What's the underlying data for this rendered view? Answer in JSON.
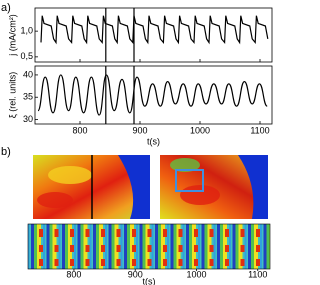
{
  "panel_labels": [
    "a)",
    "b)"
  ],
  "chart_data": [
    {
      "type": "line",
      "ylabel": "j (mA/cm²)",
      "color": "#000000",
      "xlim": [
        725,
        1120
      ],
      "ylim": [
        0.4,
        1.45
      ],
      "yticks": [
        {
          "value": 0.5,
          "label": "0,5"
        },
        {
          "value": 1.0,
          "label": "1,0"
        }
      ],
      "vlines": [
        843,
        890
      ],
      "x": [
        735,
        737,
        740,
        752,
        756,
        760,
        762,
        765,
        777,
        781,
        786,
        788,
        791,
        803,
        807,
        811,
        813,
        816,
        828,
        832,
        837,
        839,
        842,
        854,
        858,
        862,
        864,
        867,
        879,
        883,
        888,
        890,
        893,
        905,
        909,
        913,
        915,
        918,
        930,
        934,
        939,
        941,
        944,
        956,
        960,
        964,
        966,
        969,
        981,
        985,
        990,
        992,
        995,
        1007,
        1011,
        1015,
        1017,
        1020,
        1032,
        1036,
        1041,
        1043,
        1046,
        1058,
        1062,
        1066,
        1068,
        1071,
        1083,
        1087,
        1092,
        1094,
        1097,
        1109,
        1113
      ],
      "values": [
        0.78,
        1.3,
        1.15,
        1.1,
        0.85,
        0.78,
        1.3,
        1.15,
        1.1,
        0.85,
        0.78,
        1.3,
        1.15,
        1.1,
        0.85,
        0.78,
        1.3,
        1.15,
        1.1,
        0.85,
        0.78,
        1.3,
        1.15,
        1.1,
        0.85,
        0.78,
        1.3,
        1.15,
        1.1,
        0.85,
        0.78,
        1.3,
        1.15,
        1.1,
        0.85,
        0.78,
        1.3,
        1.15,
        1.1,
        0.85,
        0.78,
        1.3,
        1.15,
        1.1,
        0.85,
        0.78,
        1.3,
        1.15,
        1.1,
        0.85,
        0.78,
        1.3,
        1.15,
        1.1,
        0.85,
        0.78,
        1.3,
        1.15,
        1.1,
        0.85,
        0.78,
        1.3,
        1.15,
        1.1,
        0.85,
        0.78,
        1.3,
        1.15,
        1.1,
        0.85,
        0.78,
        1.3,
        1.15,
        1.1,
        0.85
      ]
    },
    {
      "type": "line",
      "ylabel": "ξ (rel. units)",
      "xlabel": "t(s)",
      "color": "#000000",
      "xlim": [
        725,
        1120
      ],
      "ylim": [
        29,
        42
      ],
      "yticks": [
        30,
        35,
        40
      ],
      "xticks": [
        800,
        900,
        1000,
        1100
      ],
      "x": [
        730,
        742,
        755,
        768,
        781,
        793,
        806,
        819,
        832,
        844,
        857,
        870,
        883,
        895,
        908,
        921,
        934,
        946,
        959,
        972,
        985,
        997,
        1010,
        1023,
        1036,
        1048,
        1061,
        1074,
        1087,
        1099,
        1112
      ],
      "values": [
        32,
        39.5,
        31.5,
        40,
        32,
        39.5,
        31.5,
        39.5,
        31,
        40,
        32,
        39,
        31.5,
        39.5,
        33,
        38,
        33,
        38.5,
        33.5,
        38,
        33,
        38,
        33.5,
        38,
        33.5,
        38,
        33,
        38.5,
        33.5,
        38,
        33
      ]
    },
    {
      "type": "heatmap",
      "xlabel": "t(s)",
      "xlim": [
        725,
        1120
      ],
      "xticks": [
        800,
        900,
        1000,
        1100
      ]
    }
  ]
}
